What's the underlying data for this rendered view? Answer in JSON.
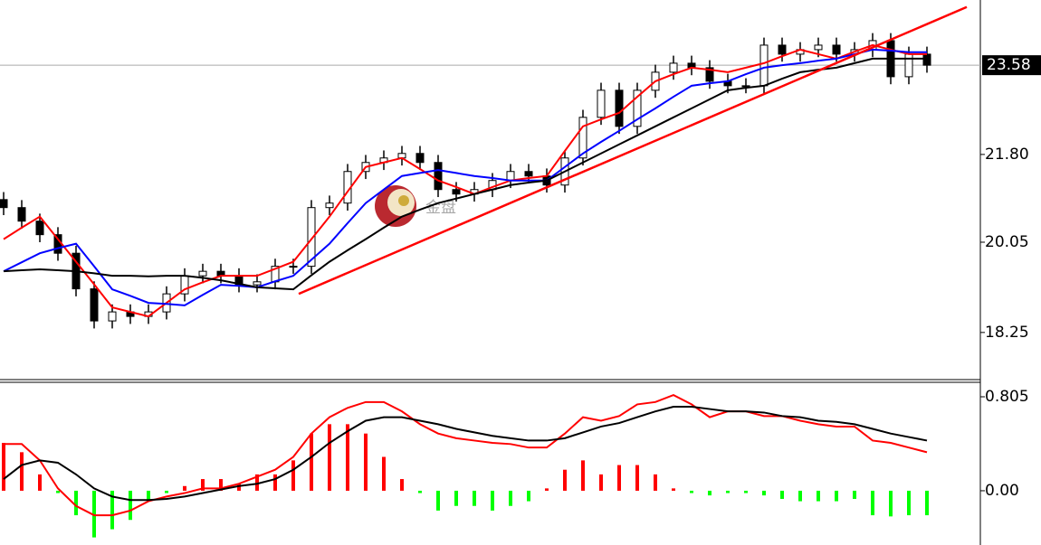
{
  "chart_data": [
    {
      "type": "candlestick",
      "open": [
        20.9,
        20.74,
        20.47,
        20.2,
        19.83,
        19.12,
        18.48,
        18.66,
        18.57,
        18.66,
        19.02,
        19.38,
        19.47,
        19.38,
        19.2,
        19.26,
        19.57,
        19.57,
        20.74,
        20.83,
        21.46,
        21.64,
        21.73,
        21.82,
        21.64,
        21.1,
        21.01,
        21.1,
        21.28,
        21.46,
        21.37,
        21.19,
        21.73,
        22.54,
        23.08,
        22.36,
        23.08,
        23.44,
        23.62,
        23.53,
        23.26,
        23.17,
        23.17,
        23.98,
        23.8,
        23.89,
        23.98,
        23.8,
        23.89,
        24.07,
        23.35,
        23.8
      ],
      "high": [
        21.05,
        20.89,
        20.62,
        20.35,
        19.98,
        19.27,
        18.81,
        18.81,
        18.81,
        19.17,
        19.53,
        19.62,
        19.62,
        19.53,
        19.41,
        19.72,
        19.72,
        20.89,
        20.98,
        21.61,
        21.79,
        21.88,
        21.97,
        21.97,
        21.79,
        21.25,
        21.25,
        21.43,
        21.61,
        21.61,
        21.52,
        21.88,
        22.69,
        23.23,
        23.23,
        23.23,
        23.59,
        23.77,
        23.77,
        23.68,
        23.41,
        23.32,
        24.13,
        24.13,
        24.04,
        24.13,
        24.13,
        24.04,
        24.22,
        24.22,
        23.95,
        23.95
      ],
      "low": [
        20.59,
        20.32,
        20.05,
        19.68,
        18.97,
        18.33,
        18.33,
        18.42,
        18.42,
        18.51,
        18.87,
        19.23,
        19.23,
        19.05,
        19.05,
        19.11,
        19.42,
        19.42,
        20.59,
        20.68,
        21.31,
        21.49,
        21.58,
        21.49,
        20.95,
        20.86,
        20.86,
        20.95,
        21.13,
        21.22,
        21.04,
        21.04,
        21.58,
        22.39,
        22.21,
        22.21,
        22.93,
        23.29,
        23.38,
        23.11,
        23.02,
        23.02,
        23.02,
        23.65,
        23.65,
        23.74,
        23.65,
        23.65,
        23.74,
        23.2,
        23.2,
        23.43
      ],
      "close": [
        20.74,
        20.47,
        20.2,
        19.83,
        19.12,
        18.48,
        18.66,
        18.57,
        18.66,
        19.02,
        19.38,
        19.47,
        19.38,
        19.2,
        19.26,
        19.57,
        19.57,
        20.74,
        20.83,
        21.46,
        21.64,
        21.73,
        21.82,
        21.64,
        21.1,
        21.01,
        21.1,
        21.28,
        21.46,
        21.37,
        21.19,
        21.73,
        22.54,
        23.08,
        22.36,
        23.08,
        23.44,
        23.62,
        23.53,
        23.26,
        23.17,
        23.17,
        23.98,
        23.8,
        23.89,
        23.98,
        23.8,
        23.89,
        24.07,
        23.35,
        23.8,
        23.58
      ],
      "series": [
        {
          "color": "#ff0000",
          "values": [
            20.11,
            20.34,
            20.56,
            20.11,
            19.66,
            19.21,
            18.75,
            18.66,
            18.57,
            18.84,
            19.11,
            19.25,
            19.38,
            19.38,
            19.38,
            19.52,
            19.66,
            20.11,
            20.56,
            21.06,
            21.55,
            21.64,
            21.73,
            21.51,
            21.28,
            21.15,
            21.01,
            21.15,
            21.28,
            21.33,
            21.37,
            21.87,
            22.36,
            22.5,
            22.63,
            22.95,
            23.26,
            23.4,
            23.53,
            23.49,
            23.44,
            23.53,
            23.62,
            23.76,
            23.89,
            23.8,
            23.71,
            23.85,
            23.98,
            23.89,
            23.8,
            23.8
          ]
        },
        {
          "color": "#0000ff",
          "values": [
            19.47,
            19.65,
            19.83,
            19.93,
            20.02,
            19.57,
            19.11,
            18.98,
            18.84,
            18.82,
            18.79,
            19.0,
            19.2,
            19.18,
            19.15,
            19.27,
            19.38,
            19.7,
            20.02,
            20.43,
            20.83,
            21.1,
            21.37,
            21.43,
            21.49,
            21.43,
            21.37,
            21.33,
            21.28,
            21.28,
            21.28,
            21.55,
            21.82,
            22.05,
            22.27,
            22.5,
            22.72,
            22.95,
            23.17,
            23.22,
            23.26,
            23.4,
            23.53,
            23.58,
            23.62,
            23.67,
            23.71,
            23.8,
            23.89,
            23.87,
            23.84,
            23.84
          ]
        },
        {
          "color": "#000000",
          "values": [
            19.47,
            19.49,
            19.51,
            19.49,
            19.47,
            19.43,
            19.38,
            19.38,
            19.37,
            19.38,
            19.38,
            19.34,
            19.29,
            19.22,
            19.15,
            19.13,
            19.11,
            19.39,
            19.66,
            19.89,
            20.11,
            20.34,
            20.56,
            20.7,
            20.83,
            20.92,
            21.01,
            21.1,
            21.19,
            21.24,
            21.28,
            21.46,
            21.64,
            21.82,
            22.0,
            22.18,
            22.36,
            22.54,
            22.72,
            22.9,
            23.08,
            23.13,
            23.17,
            23.31,
            23.44,
            23.49,
            23.53,
            23.62,
            23.71,
            23.71,
            23.71,
            23.71
          ]
        }
      ],
      "trendline": {
        "x": [
          16.3,
          53.2
        ],
        "y": [
          19.02,
          24.74
        ],
        "color": "#ff0000"
      },
      "last_price": 23.58,
      "ylim": [
        17.31,
        24.88
      ],
      "yticks": [
        18.25,
        20.05,
        {
          "value": 21.8,
          "label": "21.80"
        }
      ],
      "up_color": "#ffffff",
      "down_color": "#000000",
      "watermark": "金盘"
    },
    {
      "type": "macd",
      "values": [
        0.41,
        0.33,
        0.14,
        -0.02,
        -0.21,
        -0.4,
        -0.33,
        -0.25,
        -0.09,
        -0.02,
        0.04,
        0.1,
        0.1,
        0.06,
        0.14,
        0.14,
        0.26,
        0.49,
        0.57,
        0.57,
        0.49,
        0.29,
        0.1,
        -0.02,
        -0.17,
        -0.13,
        -0.13,
        -0.17,
        -0.13,
        -0.09,
        0.02,
        0.18,
        0.26,
        0.14,
        0.22,
        0.22,
        0.14,
        0.02,
        -0.02,
        -0.04,
        -0.02,
        -0.02,
        -0.04,
        -0.07,
        -0.09,
        -0.09,
        -0.09,
        -0.07,
        -0.21,
        -0.22,
        -0.21,
        -0.21
      ],
      "series": [
        {
          "color": "#ff0000",
          "values": [
            0.4,
            0.4,
            0.26,
            0.02,
            -0.13,
            -0.21,
            -0.21,
            -0.17,
            -0.09,
            -0.05,
            -0.02,
            0.02,
            0.02,
            0.06,
            0.12,
            0.18,
            0.29,
            0.49,
            0.63,
            0.71,
            0.76,
            0.76,
            0.68,
            0.57,
            0.49,
            0.45,
            0.43,
            0.41,
            0.4,
            0.37,
            0.37,
            0.49,
            0.63,
            0.6,
            0.64,
            0.74,
            0.76,
            0.82,
            0.74,
            0.63,
            0.68,
            0.68,
            0.64,
            0.64,
            0.6,
            0.57,
            0.55,
            0.55,
            0.43,
            0.41,
            0.37,
            0.33
          ]
        },
        {
          "color": "#000000",
          "values": [
            0.1,
            0.22,
            0.26,
            0.24,
            0.14,
            0.02,
            -0.05,
            -0.08,
            -0.08,
            -0.07,
            -0.05,
            -0.02,
            0.01,
            0.04,
            0.06,
            0.1,
            0.18,
            0.29,
            0.41,
            0.51,
            0.6,
            0.63,
            0.63,
            0.6,
            0.57,
            0.53,
            0.5,
            0.47,
            0.45,
            0.43,
            0.43,
            0.45,
            0.5,
            0.55,
            0.58,
            0.63,
            0.68,
            0.72,
            0.72,
            0.7,
            0.68,
            0.68,
            0.67,
            0.64,
            0.63,
            0.6,
            0.59,
            0.57,
            0.53,
            0.49,
            0.46,
            0.43
          ]
        }
      ],
      "ylim": [
        -0.465,
        0.929
      ],
      "yticks": [
        0.805,
        {
          "value": 0,
          "label": "0.00"
        }
      ],
      "up_color": "#ff0000",
      "down_color": "#00ff00"
    }
  ]
}
